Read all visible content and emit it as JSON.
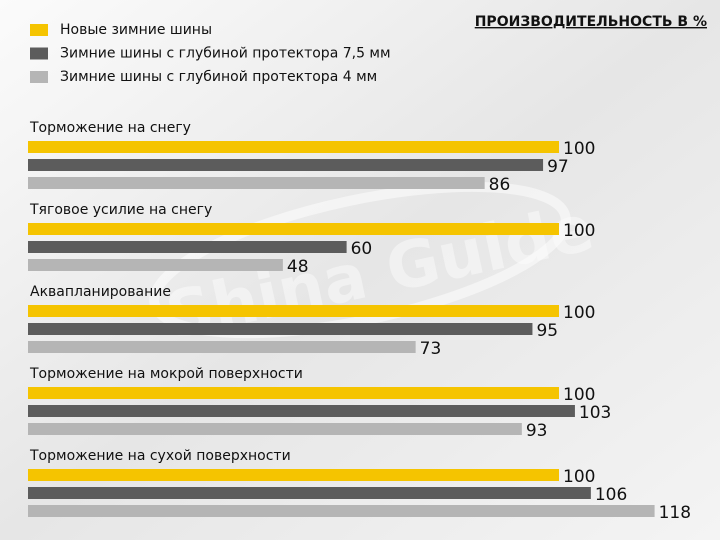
{
  "chart_data": {
    "type": "hbar",
    "title": "ПРОИЗВОДИТЕЛЬНОСТЬ В %",
    "watermark": "Shina Guide",
    "categories": [
      "Торможение на снегу",
      "Тяговое усилие на снегу",
      "Аквапланирование",
      "Торможение на мокрой поверхности",
      "Торможение на сухой поверхности"
    ],
    "series": [
      {
        "name": "Новые зимние шины",
        "color": "#f5c400",
        "values": [
          100,
          100,
          100,
          100,
          100
        ]
      },
      {
        "name": "Зимние шины с глубиной протектора 7,5 мм",
        "color": "#5c5c5c",
        "values": [
          97,
          60,
          95,
          103,
          106
        ]
      },
      {
        "name": "Зимние шины с глубиной протектора 4 мм",
        "color": "#b5b5b5",
        "values": [
          86,
          48,
          73,
          93,
          118
        ]
      }
    ]
  }
}
